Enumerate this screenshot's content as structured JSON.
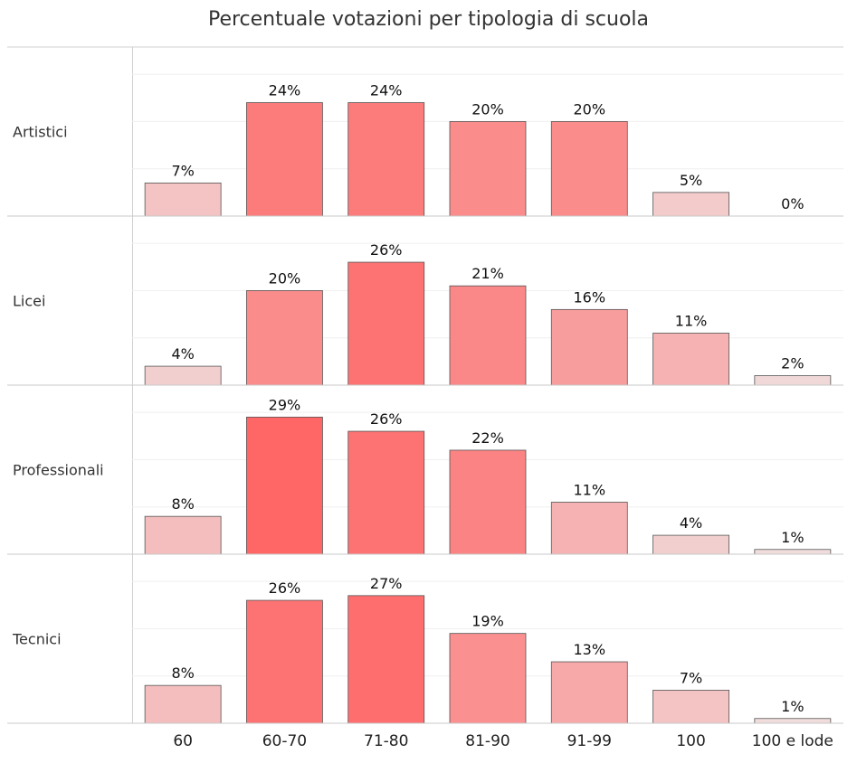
{
  "chart_data": {
    "type": "bar",
    "title": "Percentuale votazioni per tipologia di scuola",
    "categories": [
      "60",
      "60-70",
      "71-80",
      "81-90",
      "91-99",
      "100",
      "100 e lode"
    ],
    "value_suffix": "%",
    "ylim": [
      0,
      35
    ],
    "grid": true,
    "series": [
      {
        "name": "Artistici",
        "values": [
          7,
          24,
          24,
          20,
          20,
          5,
          0
        ]
      },
      {
        "name": "Licei",
        "values": [
          4,
          20,
          26,
          21,
          16,
          11,
          2
        ]
      },
      {
        "name": "Professionali",
        "values": [
          8,
          29,
          26,
          22,
          11,
          4,
          1
        ]
      },
      {
        "name": "Tecnici",
        "values": [
          8,
          26,
          27,
          19,
          13,
          7,
          1
        ]
      }
    ],
    "color_scale": {
      "low": "#f0e0e0",
      "high": "#ff6666"
    }
  }
}
